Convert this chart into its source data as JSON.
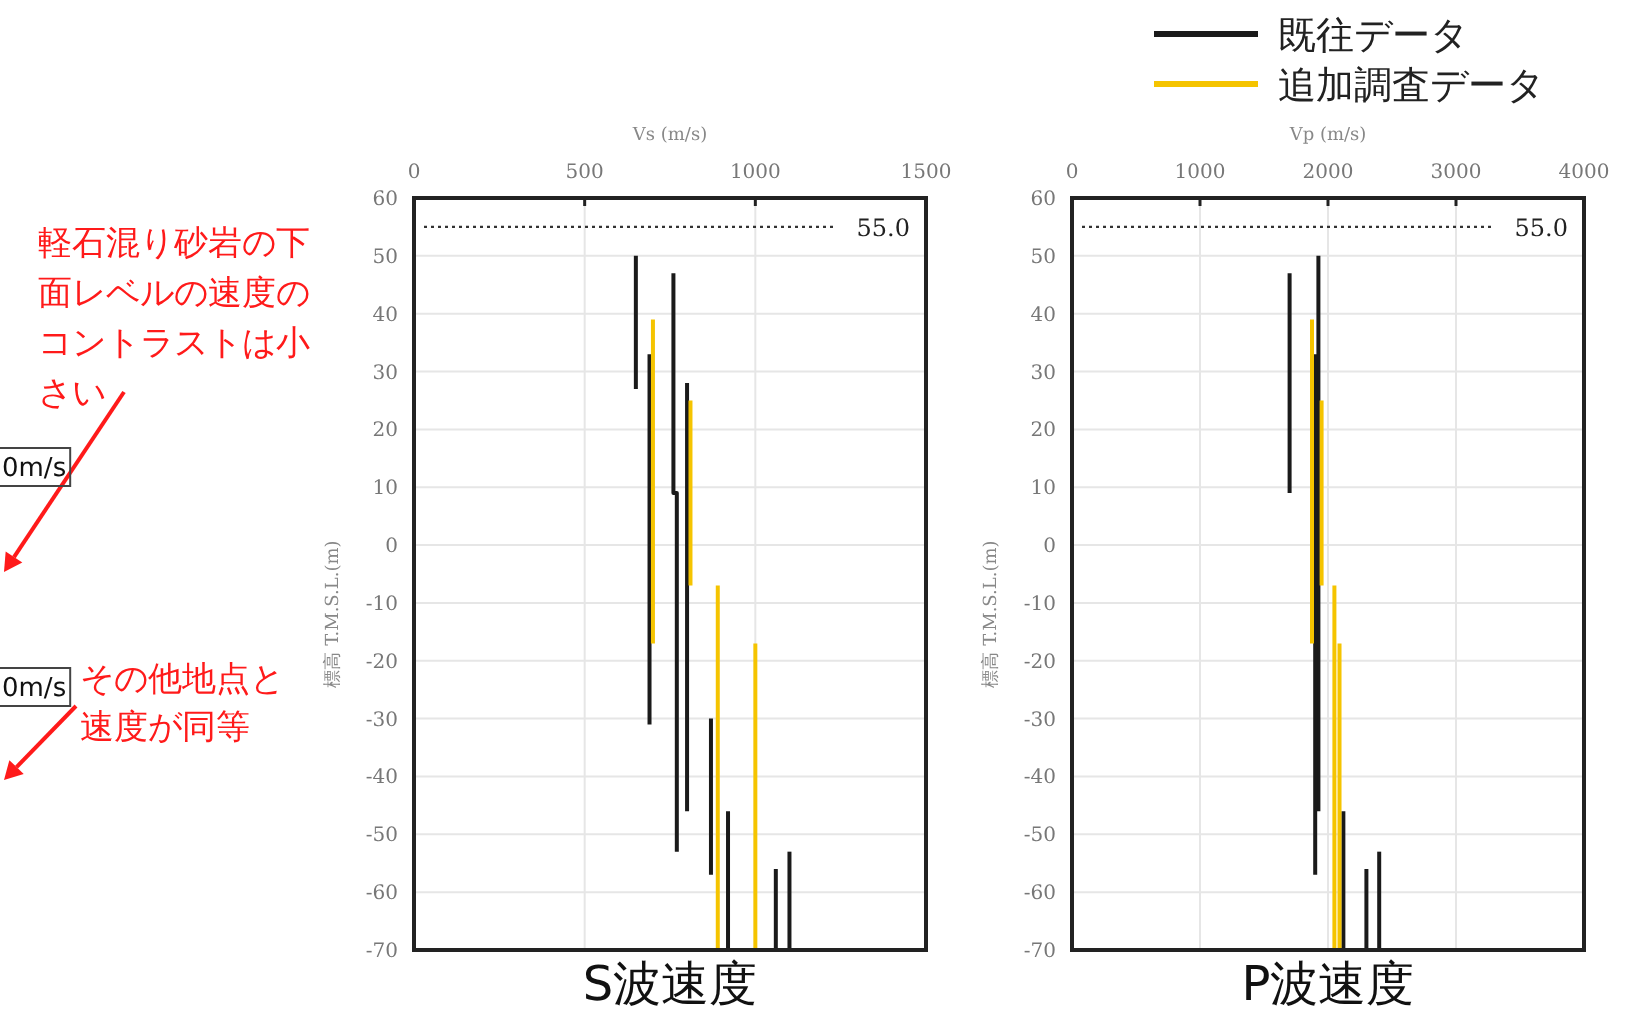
{
  "chart_data": [
    {
      "type": "line",
      "title": "S波速度",
      "xlabel": "Vs (m/s)",
      "ylabel": "標高 T.M.S.L.(m)",
      "xlim": [
        0,
        1500
      ],
      "xticks": [
        0,
        500,
        1000,
        1500
      ],
      "ylim": [
        -70,
        60
      ],
      "yticks": [
        -70,
        -60,
        -50,
        -40,
        -30,
        -20,
        -10,
        0,
        10,
        20,
        30,
        40,
        50,
        60
      ],
      "grid": true,
      "ref_lines": [
        {
          "axis": "y",
          "value": 55,
          "label": "55.0",
          "line_style": "dotted",
          "color": "#333333"
        }
      ],
      "annotations": [
        "軽石混り砂岩の下面レベルの速度のコントラストは小さい",
        "その他地点と速度が同等",
        "0m/s",
        "0m/s"
      ],
      "series": [
        {
          "color": "#1a1a1a",
          "x": [
            650,
            650
          ],
          "values": [
            50,
            27
          ]
        },
        {
          "color": "#1a1a1a",
          "x": [
            690,
            690
          ],
          "values": [
            33,
            -31
          ]
        },
        {
          "color": "#1a1a1a",
          "x": [
            760,
            760,
            770,
            770
          ],
          "values": [
            47,
            9,
            9,
            -53
          ]
        },
        {
          "color": "#1a1a1a",
          "x": [
            800,
            800
          ],
          "values": [
            28,
            -46
          ]
        },
        {
          "color": "#1a1a1a",
          "x": [
            870,
            870
          ],
          "values": [
            -30,
            -57
          ]
        },
        {
          "color": "#1a1a1a",
          "x": [
            920,
            920
          ],
          "values": [
            -46,
            -70
          ]
        },
        {
          "color": "#1a1a1a",
          "x": [
            1060,
            1060
          ],
          "values": [
            -56,
            -70
          ]
        },
        {
          "color": "#1a1a1a",
          "x": [
            1100,
            1100
          ],
          "values": [
            -53,
            -70
          ]
        },
        {
          "color": "#f5c400",
          "x": [
            700,
            700
          ],
          "values": [
            39,
            -17
          ]
        },
        {
          "color": "#f5c400",
          "x": [
            810,
            810
          ],
          "values": [
            25,
            -7
          ]
        },
        {
          "color": "#f5c400",
          "x": [
            890,
            890
          ],
          "values": [
            -7,
            -70
          ]
        },
        {
          "color": "#f5c400",
          "x": [
            1000,
            1000
          ],
          "values": [
            -17,
            -70
          ]
        }
      ]
    },
    {
      "type": "line",
      "title": "P波速度",
      "xlabel": "Vp (m/s)",
      "ylabel": "標高 T.M.S.L.(m)",
      "xlim": [
        0,
        4000
      ],
      "xticks": [
        0,
        1000,
        2000,
        3000,
        4000
      ],
      "ylim": [
        -70,
        60
      ],
      "yticks": [
        -70,
        -60,
        -50,
        -40,
        -30,
        -20,
        -10,
        0,
        10,
        20,
        30,
        40,
        50,
        60
      ],
      "grid": true,
      "legend": "top right",
      "ref_lines": [
        {
          "axis": "y",
          "value": 55,
          "label": "55.0",
          "line_style": "dotted",
          "color": "#333333"
        }
      ],
      "series": [
        {
          "name": "既往データ",
          "color": "#1a1a1a",
          "x": [
            1700,
            1700
          ],
          "values": [
            47,
            9
          ]
        },
        {
          "color": "#1a1a1a",
          "x": [
            1925,
            1925
          ],
          "values": [
            50,
            -46
          ]
        },
        {
          "color": "#1a1a1a",
          "x": [
            1900,
            1900
          ],
          "values": [
            33,
            -57
          ]
        },
        {
          "color": "#1a1a1a",
          "x": [
            2120,
            2120
          ],
          "values": [
            -46,
            -70
          ]
        },
        {
          "color": "#1a1a1a",
          "x": [
            2300,
            2300
          ],
          "values": [
            -56,
            -70
          ]
        },
        {
          "color": "#1a1a1a",
          "x": [
            2400,
            2400
          ],
          "values": [
            -53,
            -70
          ]
        },
        {
          "name": "追加調査データ",
          "color": "#f5c400",
          "x": [
            1875,
            1875
          ],
          "values": [
            39,
            -17
          ]
        },
        {
          "color": "#f5c400",
          "x": [
            1950,
            1950
          ],
          "values": [
            25,
            -7
          ]
        },
        {
          "color": "#f5c400",
          "x": [
            2050,
            2050
          ],
          "values": [
            -7,
            -70
          ]
        },
        {
          "color": "#f5c400",
          "x": [
            2090,
            2090
          ],
          "values": [
            -17,
            -70
          ]
        }
      ]
    }
  ]
}
